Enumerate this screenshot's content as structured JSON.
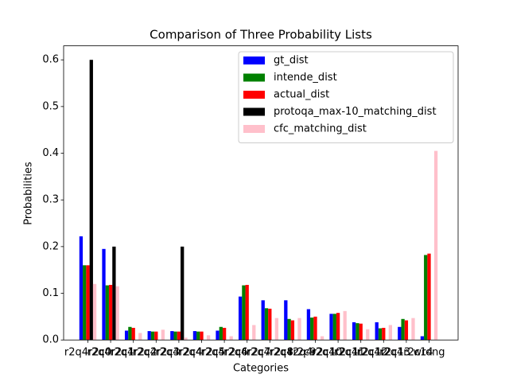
{
  "chart_data": {
    "type": "bar",
    "title": "Comparison of Three Probability Lists",
    "x_label": "Categories",
    "y_label": "Probabilities",
    "categories": [
      "r2q4r2c0",
      "r2q4r2c1",
      "r2q4r2c2",
      "r2q4r2c3",
      "r2q4r2c4",
      "r2q4r2c5",
      "r2q4r2c6",
      "r2q4r2c7",
      "r2q4r2c8",
      "r2q4r2c9",
      "r2q4r2c10",
      "r2q4r2c11",
      "r2q4r2c12",
      "r2q4r2c13",
      "r2q4r2c14",
      "wrong"
    ],
    "series": [
      {
        "name": "gt_dist",
        "color": "#0000ff",
        "values": [
          0.222,
          0.195,
          0.02,
          0.019,
          0.019,
          0.019,
          0.02,
          0.093,
          0.085,
          0.085,
          0.066,
          0.056,
          0.038,
          0.038,
          0.028,
          0.008
        ]
      },
      {
        "name": "intende_dist",
        "color": "#008000",
        "values": [
          0.16,
          0.117,
          0.028,
          0.018,
          0.018,
          0.018,
          0.028,
          0.117,
          0.068,
          0.045,
          0.048,
          0.056,
          0.036,
          0.025,
          0.045,
          0.182
        ]
      },
      {
        "name": "actual_dist",
        "color": "#ff0000",
        "values": [
          0.16,
          0.118,
          0.026,
          0.018,
          0.018,
          0.018,
          0.026,
          0.118,
          0.067,
          0.042,
          0.05,
          0.058,
          0.035,
          0.026,
          0.042,
          0.185
        ]
      },
      {
        "name": "protoqa_max-10_matching_dist",
        "color": "#000000",
        "values": [
          0.6,
          0.2,
          0,
          0,
          0.2,
          0,
          0,
          0,
          0,
          0,
          0,
          0,
          0,
          0,
          0,
          0
        ]
      },
      {
        "name": "cfc_matching_dist",
        "color": "#ffc0cb",
        "values": [
          0.12,
          0.115,
          0.015,
          0.022,
          0.005,
          0.01,
          0.008,
          0.032,
          0.047,
          0.047,
          0.008,
          0.062,
          0.023,
          0.032,
          0.047,
          0.405
        ]
      }
    ],
    "ylim": [
      0,
      0.63
    ],
    "yticks": [
      {
        "value": 0,
        "label": "0.0"
      },
      {
        "value": 0.1,
        "label": "0.1"
      },
      {
        "value": 0.2,
        "label": "0.2"
      },
      {
        "value": 0.3,
        "label": "0.3"
      },
      {
        "value": 0.4,
        "label": "0.4"
      },
      {
        "value": 0.5,
        "label": "0.5"
      },
      {
        "value": 0.6,
        "label": "0.6"
      }
    ],
    "legend": "upper right"
  }
}
